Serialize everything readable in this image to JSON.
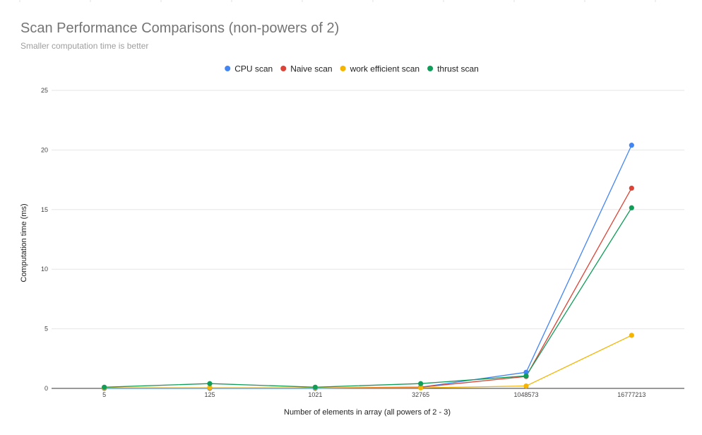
{
  "chart_data": {
    "type": "line",
    "title": "Scan Performance Comparisons (non-powers of 2)",
    "subtitle": "Smaller computation time is better",
    "xlabel": "Number of elements in array (all powers of 2 - 3)",
    "ylabel": "Computation time (ms)",
    "categories": [
      "5",
      "125",
      "1021",
      "32765",
      "1048573",
      "16777213"
    ],
    "ylim": [
      0,
      25
    ],
    "yticks": [
      0,
      5,
      10,
      15,
      20,
      25
    ],
    "grid": true,
    "legend_position": "top",
    "series": [
      {
        "name": "CPU scan",
        "color": "#4285f4",
        "values": [
          0.0,
          0.0,
          0.0,
          0.1,
          1.35,
          20.4
        ]
      },
      {
        "name": "Naive scan",
        "color": "#db4437",
        "values": [
          0.05,
          0.05,
          0.05,
          0.1,
          1.0,
          16.8
        ]
      },
      {
        "name": "work efficient scan",
        "color": "#f4b400",
        "values": [
          0.05,
          0.05,
          0.05,
          0.05,
          0.2,
          4.45
        ]
      },
      {
        "name": "thrust scan",
        "color": "#0f9d58",
        "values": [
          0.1,
          0.4,
          0.1,
          0.4,
          1.05,
          15.15
        ]
      }
    ]
  }
}
